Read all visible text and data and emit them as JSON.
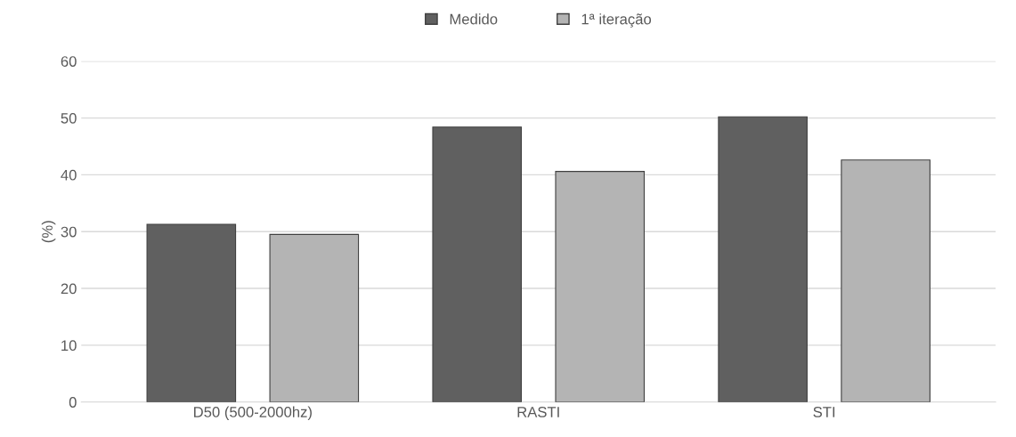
{
  "chart_data": {
    "type": "bar",
    "ylabel": "(%)",
    "categories": [
      "D50 (500-2000hz)",
      "RASTI",
      "STI"
    ],
    "series": [
      {
        "name": "Medido",
        "color": "#606060",
        "values": [
          31.3,
          48.4,
          50.2
        ]
      },
      {
        "name": "1ª iteração",
        "color": "#b4b4b4",
        "values": [
          29.5,
          40.6,
          42.6
        ]
      }
    ],
    "ylim": [
      0,
      60
    ],
    "yticks": [
      0,
      10,
      20,
      30,
      40,
      50,
      60
    ],
    "grid": "y",
    "legend": "top"
  }
}
